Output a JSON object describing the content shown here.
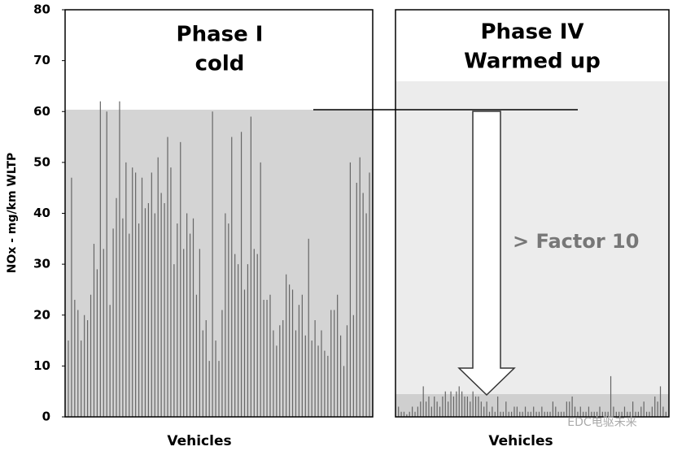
{
  "chart_data": [
    {
      "type": "bar",
      "title": [
        "Phase I",
        "cold"
      ],
      "x_label": "Vehicles",
      "y_label": "NOx - mg/km WLTP",
      "color": "#666666",
      "ylim": [
        0,
        80
      ],
      "yticks": [
        0,
        10,
        20,
        30,
        40,
        50,
        60,
        70,
        80
      ],
      "values": [
        15,
        47,
        23,
        21,
        15,
        20,
        19,
        24,
        34,
        29,
        62,
        33,
        60,
        22,
        37,
        43,
        62,
        39,
        50,
        36,
        49,
        48,
        38,
        47,
        41,
        42,
        48,
        40,
        51,
        44,
        42,
        55,
        49,
        30,
        38,
        54,
        33,
        40,
        36,
        39,
        24,
        33,
        17,
        19,
        11,
        60,
        15,
        11,
        21,
        40,
        38,
        55,
        32,
        30,
        56,
        25,
        30,
        59,
        33,
        32,
        50,
        23,
        23,
        24,
        17,
        14,
        18,
        19,
        28,
        26,
        25,
        17,
        22,
        24,
        16,
        35,
        15,
        19,
        14,
        17,
        13,
        12,
        21,
        21,
        24,
        16,
        10,
        18,
        50,
        20,
        46,
        51,
        44,
        40,
        48
      ]
    },
    {
      "type": "bar",
      "title": [
        "Phase IV",
        "Warmed up"
      ],
      "x_label": "Vehicles",
      "annotation": "> Factor 10",
      "color": "#666666",
      "ylim": [
        0,
        80
      ],
      "values": [
        2,
        1,
        1,
        0.5,
        1,
        2,
        1,
        2,
        3,
        6,
        3,
        4,
        2,
        4,
        3,
        2,
        4,
        5,
        3,
        5,
        4,
        5,
        6,
        5,
        4,
        4,
        3,
        5,
        4,
        4,
        3,
        2,
        3,
        1,
        2,
        1,
        4,
        1,
        1,
        3,
        1,
        1,
        2,
        2,
        1,
        1,
        2,
        1,
        1,
        2,
        1,
        1,
        2,
        1,
        1,
        1,
        3,
        2,
        1,
        1,
        1,
        3,
        3,
        4,
        2,
        1,
        2,
        1,
        1,
        2,
        1,
        1,
        1,
        2,
        1,
        1,
        1,
        8,
        2,
        1,
        1,
        1,
        2,
        1,
        1,
        3,
        1,
        1,
        2,
        3,
        1,
        1,
        2,
        4,
        3,
        6,
        2,
        1
      ]
    }
  ],
  "watermark": "EDC电驱未来"
}
